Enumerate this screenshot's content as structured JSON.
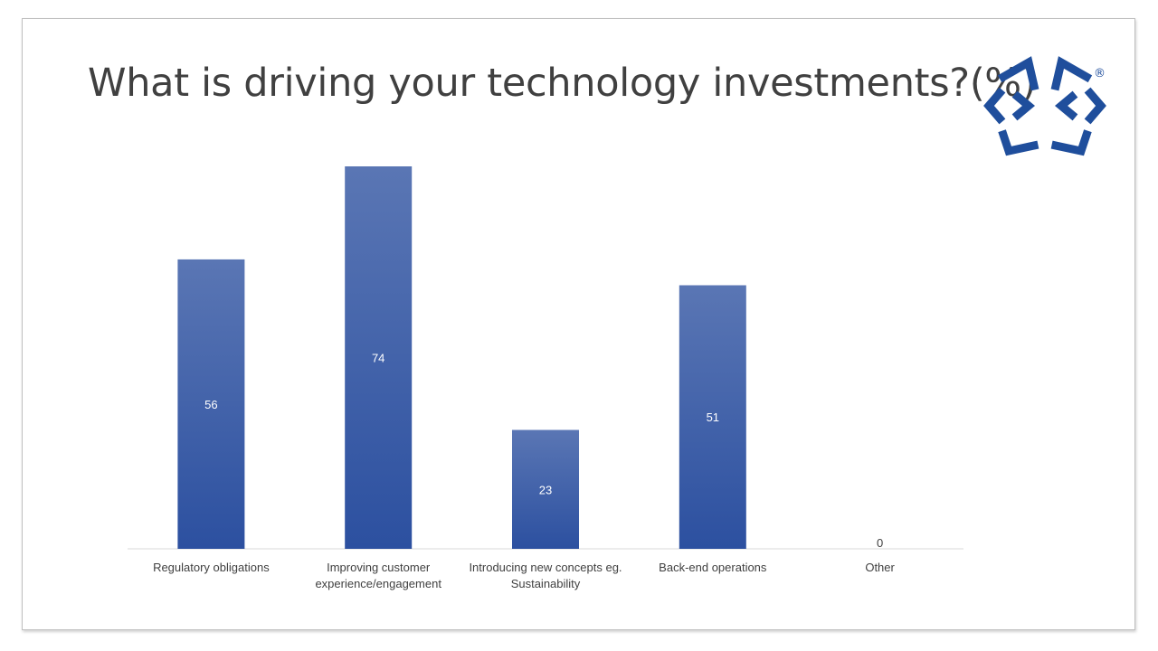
{
  "slide": {
    "title": "What is driving your technology investments?(%)"
  },
  "logo": {
    "icon": "brand-logo-icon",
    "color": "#1f4e9c",
    "registered_mark": "®"
  },
  "chart_data": {
    "type": "bar",
    "title": "What is driving your technology investments?(%)",
    "categories": [
      "Regulatory obligations",
      "Improving customer experience/engagement",
      "Introducing new concepts eg. Sustainability",
      "Back-end operations",
      "Other"
    ],
    "category_lines": [
      [
        "Regulatory obligations"
      ],
      [
        "Improving customer",
        "experience/engagement"
      ],
      [
        "Introducing new concepts eg.",
        "Sustainability"
      ],
      [
        "Back-end operations"
      ],
      [
        "Other"
      ]
    ],
    "values": [
      56,
      74,
      23,
      51,
      0
    ],
    "data_labels": [
      "56",
      "74",
      "23",
      "51",
      "0"
    ],
    "ylim": [
      0,
      74
    ],
    "grid": false,
    "legend": "none",
    "bar_color_top": "#5a76b4",
    "bar_color_bottom": "#2c50a0"
  }
}
